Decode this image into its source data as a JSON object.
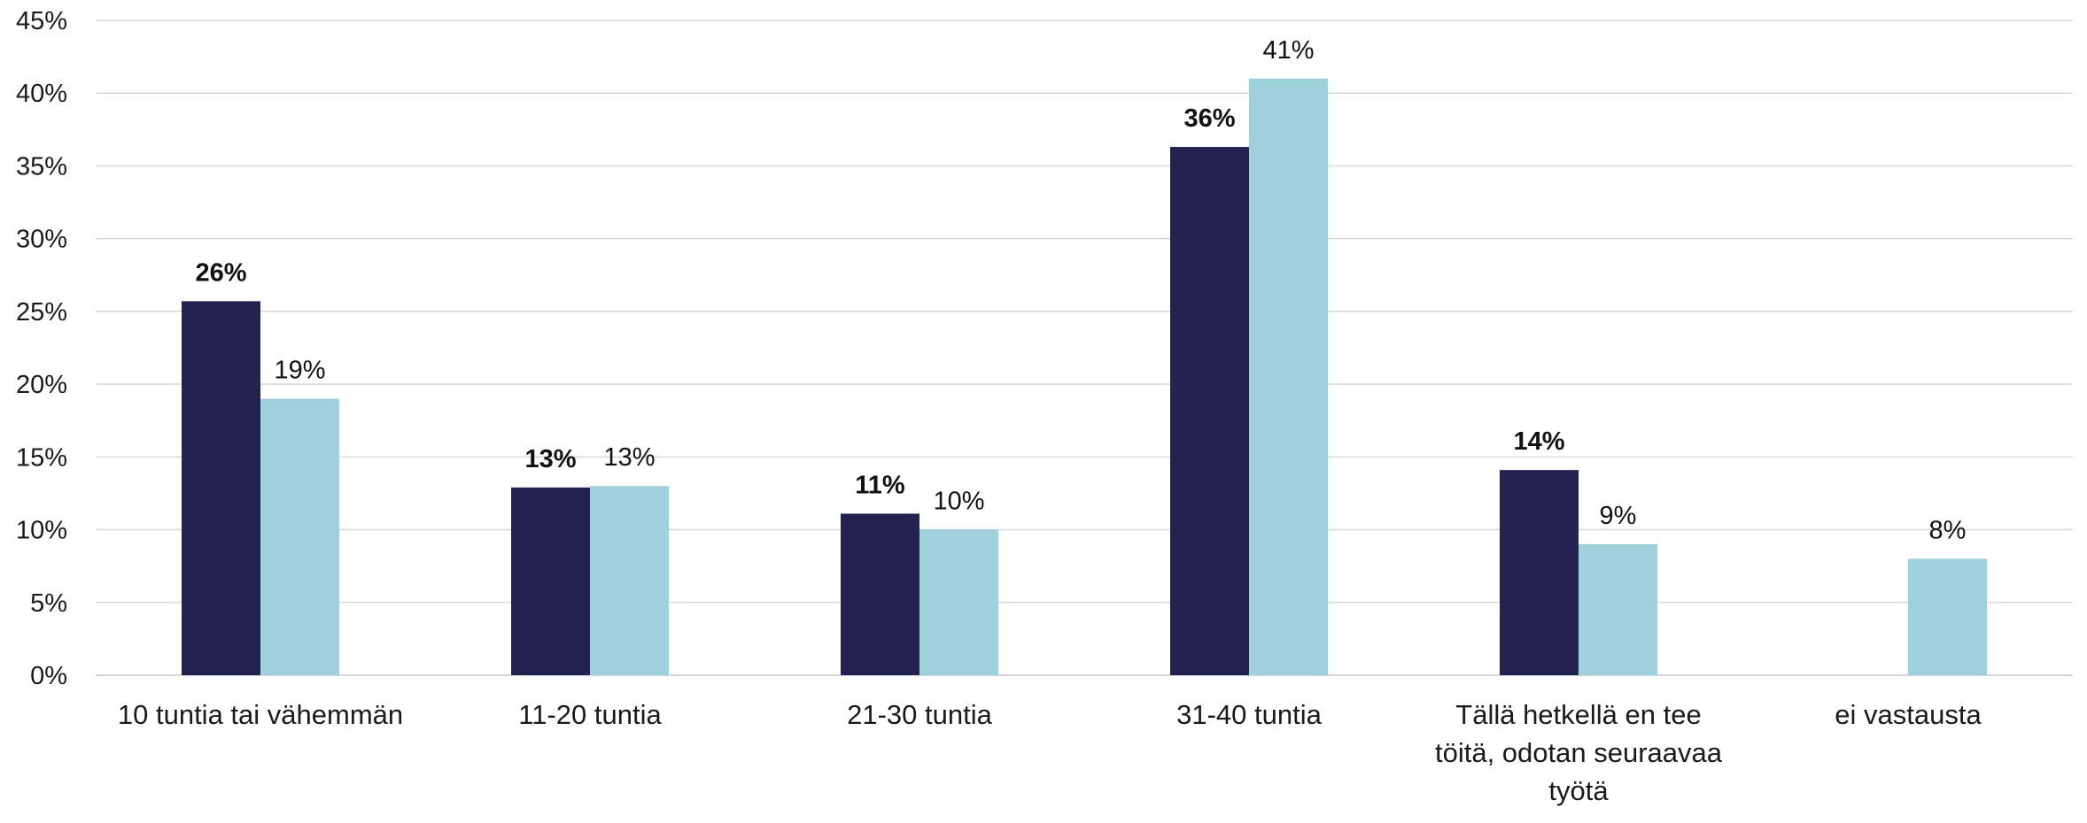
{
  "chart_data": {
    "type": "bar",
    "categories": [
      [
        "10 tuntia tai vähemmän"
      ],
      [
        "11-20 tuntia"
      ],
      [
        "21-30 tuntia"
      ],
      [
        "31-40 tuntia"
      ],
      [
        "Tällä hetkellä en tee",
        "töitä, odotan seuraavaa",
        "työtä"
      ],
      [
        "ei vastausta"
      ]
    ],
    "series": [
      {
        "color": "#232250",
        "values": [
          25.7,
          12.9,
          11.1,
          36.3,
          14.1,
          null
        ],
        "labels": [
          "26%",
          "13%",
          "11%",
          "36%",
          "14%",
          null
        ],
        "label_weight": "bold"
      },
      {
        "color": "#9ed1dc",
        "values": [
          19.0,
          13.0,
          10.0,
          41.0,
          9.0,
          8.0
        ],
        "labels": [
          "19%",
          "13%",
          "10%",
          "41%",
          "9%",
          "8%"
        ],
        "label_weight": "normal"
      }
    ],
    "yticks": [
      "0%",
      "5%",
      "10%",
      "15%",
      "20%",
      "25%",
      "30%",
      "35%",
      "40%",
      "45%"
    ],
    "ylim": [
      0,
      45
    ],
    "grid": true,
    "legend": "none",
    "title": "",
    "xlabel": "",
    "ylabel": ""
  }
}
